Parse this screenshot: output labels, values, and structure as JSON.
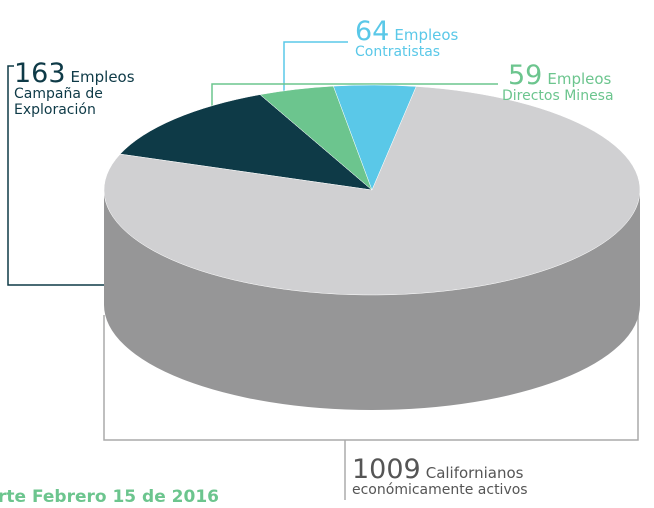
{
  "chart_data": {
    "type": "pie3d",
    "values": [
      163,
      59,
      64,
      1009
    ],
    "units": [
      "Empleos",
      "Empleos",
      "Empleos",
      "Californianos"
    ],
    "categories": [
      [
        "Campaña de",
        "Exploración"
      ],
      [
        "Directos Minesa"
      ],
      [
        "Contratistas"
      ],
      [
        "económicamente activos"
      ]
    ],
    "colors": [
      "#0e3a47",
      "#6cc58e",
      "#5ac8e8",
      "#d0d0d2"
    ],
    "label_colors": [
      "#0e3a47",
      "#6cc58e",
      "#5ac8e8",
      "#555555"
    ],
    "footnote": "rte Febrero 15 de 2016"
  }
}
